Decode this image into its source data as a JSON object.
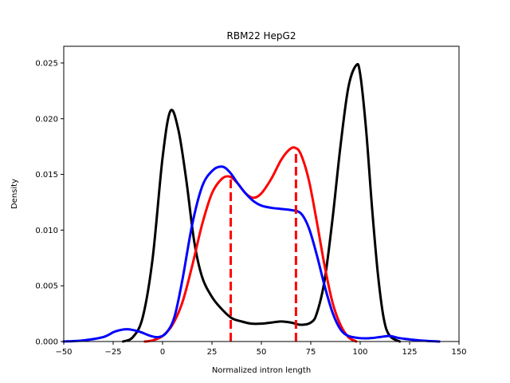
{
  "chart_data": {
    "type": "line",
    "title": "RBM22 HepG2",
    "xlabel": "Normalized intron length",
    "ylabel": "Density",
    "xlim": [
      -50,
      150
    ],
    "ylim": [
      0,
      0.0265
    ],
    "xticks": [
      -50,
      -25,
      0,
      25,
      50,
      75,
      100,
      125,
      150
    ],
    "xtick_labels": [
      "−50",
      "−25",
      "0",
      "25",
      "50",
      "75",
      "100",
      "125",
      "150"
    ],
    "yticks": [
      0.0,
      0.005,
      0.01,
      0.015,
      0.02,
      0.025
    ],
    "ytick_labels": [
      "0.000",
      "0.005",
      "0.010",
      "0.015",
      "0.020",
      "0.025"
    ],
    "grid": false,
    "legend": "none",
    "series": [
      {
        "color": "#000000",
        "points": [
          [
            -20,
            0.0
          ],
          [
            -15,
            0.0004
          ],
          [
            -10,
            0.0022
          ],
          [
            -5,
            0.0075
          ],
          [
            0,
            0.0165
          ],
          [
            4,
            0.0207
          ],
          [
            8,
            0.019
          ],
          [
            12,
            0.0145
          ],
          [
            16,
            0.009
          ],
          [
            20,
            0.0058
          ],
          [
            25,
            0.004
          ],
          [
            30,
            0.0029
          ],
          [
            35,
            0.0021
          ],
          [
            40,
            0.0018
          ],
          [
            45,
            0.0016
          ],
          [
            50,
            0.0016
          ],
          [
            55,
            0.0017
          ],
          [
            60,
            0.0018
          ],
          [
            65,
            0.0017
          ],
          [
            70,
            0.0015
          ],
          [
            75,
            0.0017
          ],
          [
            78,
            0.0025
          ],
          [
            82,
            0.0055
          ],
          [
            86,
            0.011
          ],
          [
            90,
            0.0175
          ],
          [
            94,
            0.0228
          ],
          [
            98,
            0.0248
          ],
          [
            100,
            0.024
          ],
          [
            103,
            0.019
          ],
          [
            106,
            0.012
          ],
          [
            109,
            0.006
          ],
          [
            112,
            0.002
          ],
          [
            115,
            0.0005
          ],
          [
            120,
            0.0
          ]
        ]
      },
      {
        "color": "#ff0000",
        "points": [
          [
            -9,
            0.0
          ],
          [
            -5,
            0.0001
          ],
          [
            0,
            0.0005
          ],
          [
            5,
            0.0015
          ],
          [
            10,
            0.0035
          ],
          [
            15,
            0.0068
          ],
          [
            20,
            0.0105
          ],
          [
            25,
            0.0133
          ],
          [
            30,
            0.0146
          ],
          [
            34,
            0.0148
          ],
          [
            38,
            0.0142
          ],
          [
            42,
            0.0133
          ],
          [
            46,
            0.0129
          ],
          [
            50,
            0.0133
          ],
          [
            55,
            0.0146
          ],
          [
            60,
            0.0163
          ],
          [
            64,
            0.0172
          ],
          [
            67,
            0.0174
          ],
          [
            70,
            0.0168
          ],
          [
            74,
            0.0145
          ],
          [
            78,
            0.0108
          ],
          [
            82,
            0.0068
          ],
          [
            86,
            0.0035
          ],
          [
            90,
            0.0015
          ],
          [
            94,
            0.0004
          ],
          [
            98,
            0.0
          ]
        ]
      },
      {
        "color": "#0000ff",
        "points": [
          [
            -50,
            0.0
          ],
          [
            -40,
            0.0001
          ],
          [
            -30,
            0.0004
          ],
          [
            -24,
            0.0009
          ],
          [
            -18,
            0.0011
          ],
          [
            -12,
            0.0009
          ],
          [
            -6,
            0.0005
          ],
          [
            -2,
            0.0004
          ],
          [
            2,
            0.0008
          ],
          [
            6,
            0.0022
          ],
          [
            10,
            0.0055
          ],
          [
            15,
            0.0105
          ],
          [
            20,
            0.0139
          ],
          [
            25,
            0.0153
          ],
          [
            30,
            0.0157
          ],
          [
            34,
            0.0152
          ],
          [
            38,
            0.0142
          ],
          [
            42,
            0.0133
          ],
          [
            46,
            0.0126
          ],
          [
            50,
            0.0122
          ],
          [
            55,
            0.012
          ],
          [
            60,
            0.0119
          ],
          [
            65,
            0.0118
          ],
          [
            70,
            0.0115
          ],
          [
            74,
            0.0102
          ],
          [
            78,
            0.0078
          ],
          [
            82,
            0.005
          ],
          [
            86,
            0.0026
          ],
          [
            90,
            0.0011
          ],
          [
            94,
            0.0005
          ],
          [
            100,
            0.0003
          ],
          [
            105,
            0.0003
          ],
          [
            110,
            0.0004
          ],
          [
            115,
            0.0005
          ],
          [
            120,
            0.0003
          ],
          [
            130,
            0.0001
          ],
          [
            140,
            0.0
          ]
        ]
      }
    ],
    "vlines": [
      {
        "x": 34.5,
        "ymax": 0.0148,
        "color": "#ff0000",
        "style": "dashed"
      },
      {
        "x": 67.5,
        "ymax": 0.0172,
        "color": "#ff0000",
        "style": "dashed"
      }
    ]
  }
}
